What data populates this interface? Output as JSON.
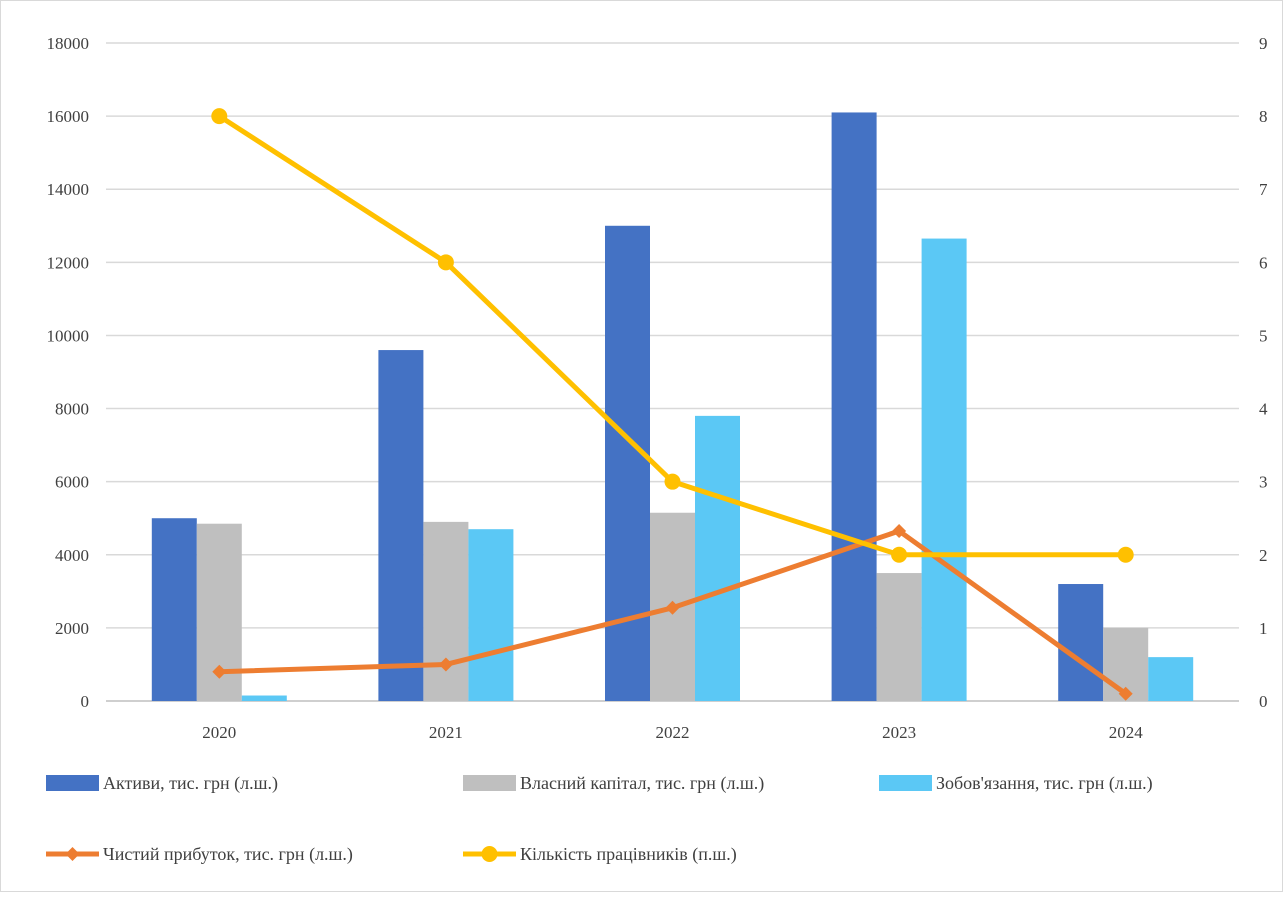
{
  "chart_data": {
    "type": "bar",
    "title": "",
    "categories": [
      "2020",
      "2021",
      "2022",
      "2023",
      "2024"
    ],
    "y_left": {
      "lim": [
        0,
        18000
      ],
      "ticks": [
        "0",
        "2000",
        "4000",
        "6000",
        "8000",
        "10000",
        "12000",
        "14000",
        "16000",
        "18000"
      ]
    },
    "y_right": {
      "lim": [
        0,
        9
      ],
      "ticks": [
        "0",
        "1",
        "2",
        "3",
        "4",
        "5",
        "6",
        "7",
        "8",
        "9"
      ]
    },
    "grid": true,
    "legend_position": "bottom",
    "series": [
      {
        "name": "Активи, тис. грн (л.ш.)",
        "type": "bar",
        "axis": "left",
        "color": "#4472c4",
        "values": [
          5000,
          9600,
          13000,
          16100,
          3200
        ]
      },
      {
        "name": "Власний капітал, тис. грн (л.ш.)",
        "type": "bar",
        "axis": "left",
        "color": "#bfbfbf",
        "values": [
          4850,
          4900,
          5150,
          3500,
          2000
        ]
      },
      {
        "name": "Зобов'язання, тис. грн (л.ш.)",
        "type": "bar",
        "axis": "left",
        "color": "#5bc8f5",
        "values": [
          150,
          4700,
          7800,
          12650,
          1200
        ]
      },
      {
        "name": "Чистий прибуток, тис. грн (л.ш.)",
        "type": "line",
        "axis": "left",
        "color": "#ed7d31",
        "marker": "diamond",
        "values": [
          800,
          1000,
          2550,
          4650,
          200
        ]
      },
      {
        "name": "Кількість працівників (п.ш.)",
        "type": "line",
        "axis": "right",
        "color": "#ffc000",
        "marker": "circle",
        "values": [
          8,
          6,
          3,
          2,
          2
        ]
      }
    ]
  }
}
